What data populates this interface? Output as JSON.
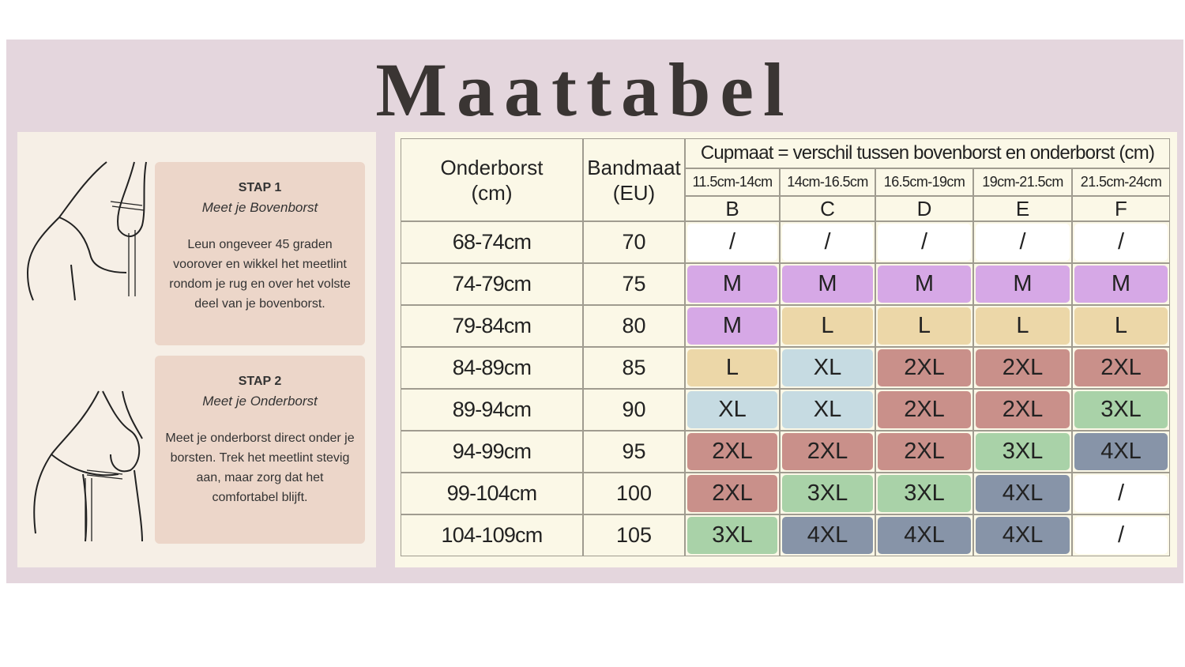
{
  "title": "Maattabel",
  "steps": [
    {
      "label": "STAP 1",
      "subtitle": "Meet je Bovenborst",
      "text": "Leun ongeveer 45 graden voorover en wikkel het meetlint rondom je rug en over het volste deel van je bovenborst."
    },
    {
      "label": "STAP 2",
      "subtitle": "Meet je Onderborst",
      "text": "Meet je onderborst direct onder je borsten. Trek het meetlint stevig aan, maar zorg dat het comfortabel blijft."
    }
  ],
  "table": {
    "columns": [
      "Onderborst\n(cm)",
      "Bandmaat\n(EU)"
    ],
    "cup_header": "Cupmaat = verschil tussen bovenborst en onderborst (cm)",
    "cups": [
      {
        "range": "11.5cm-14cm",
        "letter": "B"
      },
      {
        "range": "14cm-16.5cm",
        "letter": "C"
      },
      {
        "range": "16.5cm-19cm",
        "letter": "D"
      },
      {
        "range": "19cm-21.5cm",
        "letter": "E"
      },
      {
        "range": "21.5cm-24cm",
        "letter": "F"
      }
    ],
    "rows": [
      {
        "onderborst": "68-74cm",
        "band": 70,
        "cells": [
          {
            "size": "/",
            "color": "#ffffff"
          },
          {
            "size": "/",
            "color": "#ffffff"
          },
          {
            "size": "/",
            "color": "#ffffff"
          },
          {
            "size": "/",
            "color": "#ffffff"
          },
          {
            "size": "/",
            "color": "#ffffff"
          }
        ]
      },
      {
        "onderborst": "74-79cm",
        "band": 75,
        "cells": [
          {
            "size": "M",
            "color": "#d6a8e6"
          },
          {
            "size": "M",
            "color": "#d6a8e6"
          },
          {
            "size": "M",
            "color": "#d6a8e6"
          },
          {
            "size": "M",
            "color": "#d6a8e6"
          },
          {
            "size": "M",
            "color": "#d6a8e6"
          }
        ]
      },
      {
        "onderborst": "79-84cm",
        "band": 80,
        "cells": [
          {
            "size": "M",
            "color": "#d6a8e6"
          },
          {
            "size": "L",
            "color": "#ecd7a8"
          },
          {
            "size": "L",
            "color": "#ecd7a8"
          },
          {
            "size": "L",
            "color": "#ecd7a8"
          },
          {
            "size": "L",
            "color": "#ecd7a8"
          }
        ]
      },
      {
        "onderborst": "84-89cm",
        "band": 85,
        "cells": [
          {
            "size": "L",
            "color": "#ecd7a8"
          },
          {
            "size": "XL",
            "color": "#c6dbe2"
          },
          {
            "size": "2XL",
            "color": "#c9908a"
          },
          {
            "size": "2XL",
            "color": "#c9908a"
          },
          {
            "size": "2XL",
            "color": "#c9908a"
          }
        ]
      },
      {
        "onderborst": "89-94cm",
        "band": 90,
        "cells": [
          {
            "size": "XL",
            "color": "#c6dbe2"
          },
          {
            "size": "XL",
            "color": "#c6dbe2"
          },
          {
            "size": "2XL",
            "color": "#c9908a"
          },
          {
            "size": "2XL",
            "color": "#c9908a"
          },
          {
            "size": "3XL",
            "color": "#a9d2a8"
          }
        ]
      },
      {
        "onderborst": "94-99cm",
        "band": 95,
        "cells": [
          {
            "size": "2XL",
            "color": "#c9908a"
          },
          {
            "size": "2XL",
            "color": "#c9908a"
          },
          {
            "size": "2XL",
            "color": "#c9908a"
          },
          {
            "size": "3XL",
            "color": "#a9d2a8"
          },
          {
            "size": "4XL",
            "color": "#8794a8"
          }
        ]
      },
      {
        "onderborst": "99-104cm",
        "band": 100,
        "cells": [
          {
            "size": "2XL",
            "color": "#c9908a"
          },
          {
            "size": "3XL",
            "color": "#a9d2a8"
          },
          {
            "size": "3XL",
            "color": "#a9d2a8"
          },
          {
            "size": "4XL",
            "color": "#8794a8"
          },
          {
            "size": "/",
            "color": "#ffffff"
          }
        ]
      },
      {
        "onderborst": "104-109cm",
        "band": 105,
        "cells": [
          {
            "size": "3XL",
            "color": "#a9d2a8"
          },
          {
            "size": "4XL",
            "color": "#8794a8"
          },
          {
            "size": "4XL",
            "color": "#8794a8"
          },
          {
            "size": "4XL",
            "color": "#8794a8"
          },
          {
            "size": "/",
            "color": "#ffffff"
          }
        ]
      }
    ]
  }
}
